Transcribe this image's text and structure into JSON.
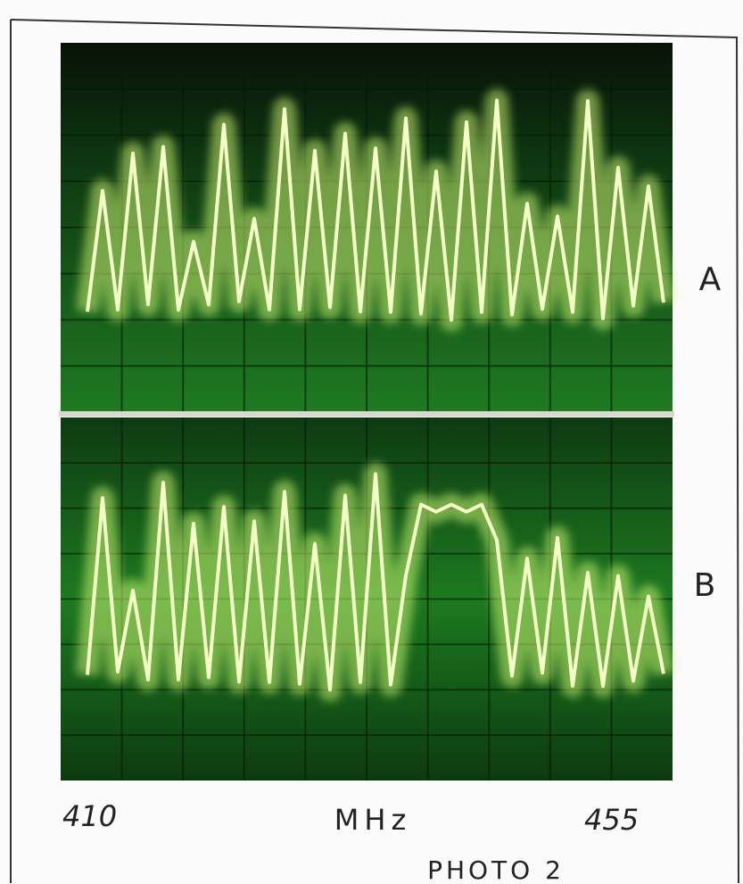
{
  "panels": [
    {
      "label": "A"
    },
    {
      "label": "B"
    }
  ],
  "axis": {
    "start": 410,
    "unit": "MHz",
    "end": 455
  },
  "caption": "PHOTO 2"
}
